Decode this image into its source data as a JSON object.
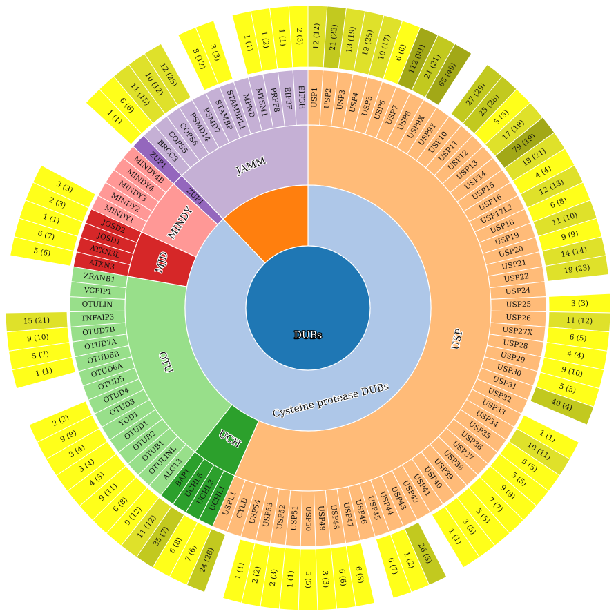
{
  "chart_data": {
    "type": "sunburst",
    "root": {
      "label": "DUBs",
      "color": "#1f77b4"
    },
    "classes": [
      {
        "label": "Cysteine protease DUBs",
        "color": "#aec7e8"
      },
      {
        "label": "",
        "color": "#ff7f0e"
      }
    ],
    "families": [
      {
        "label": "USP",
        "class": 0,
        "color": "#ffbb78",
        "genes": [
          {
            "name": "USP1",
            "count": "12 (12)"
          },
          {
            "name": "USP2",
            "count": "21 (23)"
          },
          {
            "name": "USP3",
            "count": "13 (19)"
          },
          {
            "name": "USP4",
            "count": "19 (25)"
          },
          {
            "name": "USP5",
            "count": "10 (17)"
          },
          {
            "name": "USP6",
            "count": "6 (6)"
          },
          {
            "name": "USP7",
            "count": "112 (91)"
          },
          {
            "name": "USP8",
            "count": "21 (21)"
          },
          {
            "name": "USP9X",
            "count": "65 (49)"
          },
          {
            "name": "USP9Y",
            "count": ""
          },
          {
            "name": "USP10",
            "count": "27 (29)"
          },
          {
            "name": "USP11",
            "count": "25 (28)"
          },
          {
            "name": "USP12",
            "count": "5 (5)"
          },
          {
            "name": "USP13",
            "count": "17 (19)"
          },
          {
            "name": "USP14",
            "count": "79 (19)"
          },
          {
            "name": "USP15",
            "count": "18 (21)"
          },
          {
            "name": "USP16",
            "count": "4 (4)"
          },
          {
            "name": "USP17L2",
            "count": "12 (13)"
          },
          {
            "name": "USP18",
            "count": "6 (8)"
          },
          {
            "name": "USP19",
            "count": "11 (10)"
          },
          {
            "name": "USP20",
            "count": "9 (9)"
          },
          {
            "name": "USP21",
            "count": "14 (14)"
          },
          {
            "name": "USP22",
            "count": "19 (23)"
          },
          {
            "name": "USP24",
            "count": ""
          },
          {
            "name": "USP25",
            "count": "3 (3)"
          },
          {
            "name": "USP26",
            "count": "11 (12)"
          },
          {
            "name": "USP27X",
            "count": "6 (5)"
          },
          {
            "name": "USP28",
            "count": "4 (4)"
          },
          {
            "name": "USP29",
            "count": "9 (10)"
          },
          {
            "name": "USP30",
            "count": "5 (5)"
          },
          {
            "name": "USP31",
            "count": "40 (4)"
          },
          {
            "name": "USP32",
            "count": ""
          },
          {
            "name": "USP33",
            "count": "1 (1)"
          },
          {
            "name": "USP34",
            "count": "10 (11)"
          },
          {
            "name": "USP35",
            "count": "5 (5)"
          },
          {
            "name": "USP36",
            "count": "5 (5)"
          },
          {
            "name": "USP37",
            "count": "9 (9)"
          },
          {
            "name": "USP38",
            "count": "7 (7)"
          },
          {
            "name": "USP39",
            "count": "5 (5)"
          },
          {
            "name": "USP40",
            "count": "3 (5)"
          },
          {
            "name": "USP41",
            "count": "1 (1)"
          },
          {
            "name": "USP42",
            "count": ""
          },
          {
            "name": "USP43",
            "count": "26 (3)"
          },
          {
            "name": "USP44",
            "count": "1 (2)"
          },
          {
            "name": "USP45",
            "count": "6 (7)"
          },
          {
            "name": "USP46",
            "count": ""
          },
          {
            "name": "USP47",
            "count": "6 (8)"
          },
          {
            "name": "USP48",
            "count": "6 (6)"
          },
          {
            "name": "USP49",
            "count": "3 (3)"
          },
          {
            "name": "USP50",
            "count": "5 (5)"
          },
          {
            "name": "USP51",
            "count": "1 (1)"
          },
          {
            "name": "USP52",
            "count": "2 (3)"
          },
          {
            "name": "USP53",
            "count": "2 (2)"
          },
          {
            "name": "USP54",
            "count": "1 (1)"
          },
          {
            "name": "CYLD",
            "count": ""
          },
          {
            "name": "USPL1",
            "count": "24 (28)"
          }
        ]
      },
      {
        "label": "UCH",
        "class": 0,
        "color": "#2ca02c",
        "genes": [
          {
            "name": "UCHL1",
            "count": "7 (6)"
          },
          {
            "name": "UCHL3",
            "count": "6 (8)"
          },
          {
            "name": "UCHL5",
            "count": "35 (7)"
          },
          {
            "name": "BAP1",
            "count": "11 (12)"
          }
        ]
      },
      {
        "label": "OTU",
        "class": 0,
        "color": "#98df8a",
        "genes": [
          {
            "name": "ALG13",
            "count": "9 (12)"
          },
          {
            "name": "OTULINL",
            "count": "6 (8)"
          },
          {
            "name": "OTUB1",
            "count": "9 (11)"
          },
          {
            "name": "OTUB2",
            "count": "4 (5)"
          },
          {
            "name": "OTUD1",
            "count": "3 (4)"
          },
          {
            "name": "YOD1",
            "count": "3 (4)"
          },
          {
            "name": "OTUD3",
            "count": "9 (9)"
          },
          {
            "name": "OTUD4",
            "count": "2 (2)"
          },
          {
            "name": "OTUD5",
            "count": ""
          },
          {
            "name": "OTUD6A",
            "count": ""
          },
          {
            "name": "OTUD6B",
            "count": "1 (1)"
          },
          {
            "name": "OTUD7A",
            "count": "5 (7)"
          },
          {
            "name": "OTUD7B",
            "count": "9 (10)"
          },
          {
            "name": "TNFAIP3",
            "count": "15 (21)"
          },
          {
            "name": "OTULIN",
            "count": ""
          },
          {
            "name": "VCPIP1",
            "count": ""
          },
          {
            "name": "ZRANB1",
            "count": ""
          }
        ]
      },
      {
        "label": "MJD",
        "class": 0,
        "color": "#d62728",
        "genes": [
          {
            "name": "ATXN3",
            "count": "5 (6)"
          },
          {
            "name": "ATXN3L",
            "count": "6 (7)"
          },
          {
            "name": "JOSD1",
            "count": "1 (1)"
          },
          {
            "name": "JOSD2",
            "count": "2 (3)"
          }
        ]
      },
      {
        "label": "MINDY",
        "class": 0,
        "color": "#ff9896",
        "genes": [
          {
            "name": "MINDY1",
            "count": "3 (3)"
          },
          {
            "name": "MINDY2",
            "count": ""
          },
          {
            "name": "MINDY3",
            "count": ""
          },
          {
            "name": "MINDY4",
            "count": ""
          },
          {
            "name": "MINDY4B",
            "count": ""
          }
        ]
      },
      {
        "label": "ZUP1",
        "class": 0,
        "color": "#9467bd",
        "genes": [
          {
            "name": "ZUP1",
            "count": "1 (1)"
          }
        ]
      },
      {
        "label": "JAMM",
        "class": 1,
        "color": "#c5b0d5",
        "genes": [
          {
            "name": "BRCC3",
            "count": "6 (6)"
          },
          {
            "name": "COPS5",
            "count": "11 (15)"
          },
          {
            "name": "COPS6",
            "count": "10 (12)"
          },
          {
            "name": "PSMD14",
            "count": "12 (25)"
          },
          {
            "name": "PSMD7",
            "count": ""
          },
          {
            "name": "STAMBP",
            "count": "8 (12)"
          },
          {
            "name": "STAMBPL1",
            "count": "3 (3)"
          },
          {
            "name": "MPND",
            "count": ""
          },
          {
            "name": "MYSM1",
            "count": "1 (1)"
          },
          {
            "name": "PRPF8",
            "count": "1 (2)"
          },
          {
            "name": "EIF3F",
            "count": "1 (1)"
          },
          {
            "name": "EIF3H",
            "count": "2 (3)"
          }
        ]
      }
    ],
    "count_colors": {
      "low": "#ffff1a",
      "mid": "#dfe12a",
      "high": "#c2c91f",
      "top": "#a2a817"
    }
  }
}
